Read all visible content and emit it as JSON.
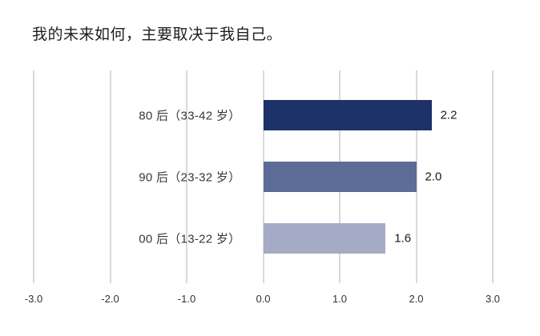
{
  "title": "我的未来如何，主要取决于我自己。",
  "chart_data": {
    "type": "bar",
    "orientation": "horizontal",
    "title": "我的未来如何，主要取决于我自己。",
    "categories": [
      "80 后（33-42 岁）",
      "90 后（23-32 岁）",
      "00 后（13-22 岁）"
    ],
    "values": [
      2.2,
      2.0,
      1.6
    ],
    "value_labels": [
      "2.2",
      "2.0",
      "1.6"
    ],
    "bar_colors": [
      "#1e3269",
      "#5d6c96",
      "#a5abc5"
    ],
    "xlim": [
      -3,
      3
    ],
    "x_ticks": [
      -3.0,
      -2.0,
      -1.0,
      0.0,
      1.0,
      2.0,
      3.0
    ],
    "x_tick_labels": [
      "-3.0",
      "-2.0",
      "-1.0",
      "0.0",
      "1.0",
      "2.0",
      "3.0"
    ],
    "xlabel": "",
    "ylabel": "",
    "grid": "vertical-gridlines",
    "legend": "none"
  },
  "colors": {
    "background": "#ffffff",
    "gridline": "#d9d9d9",
    "title_text": "#1d1d1d",
    "category_text": "#383838",
    "value_text": "#1a1a1a",
    "tick_text": "#333333"
  }
}
